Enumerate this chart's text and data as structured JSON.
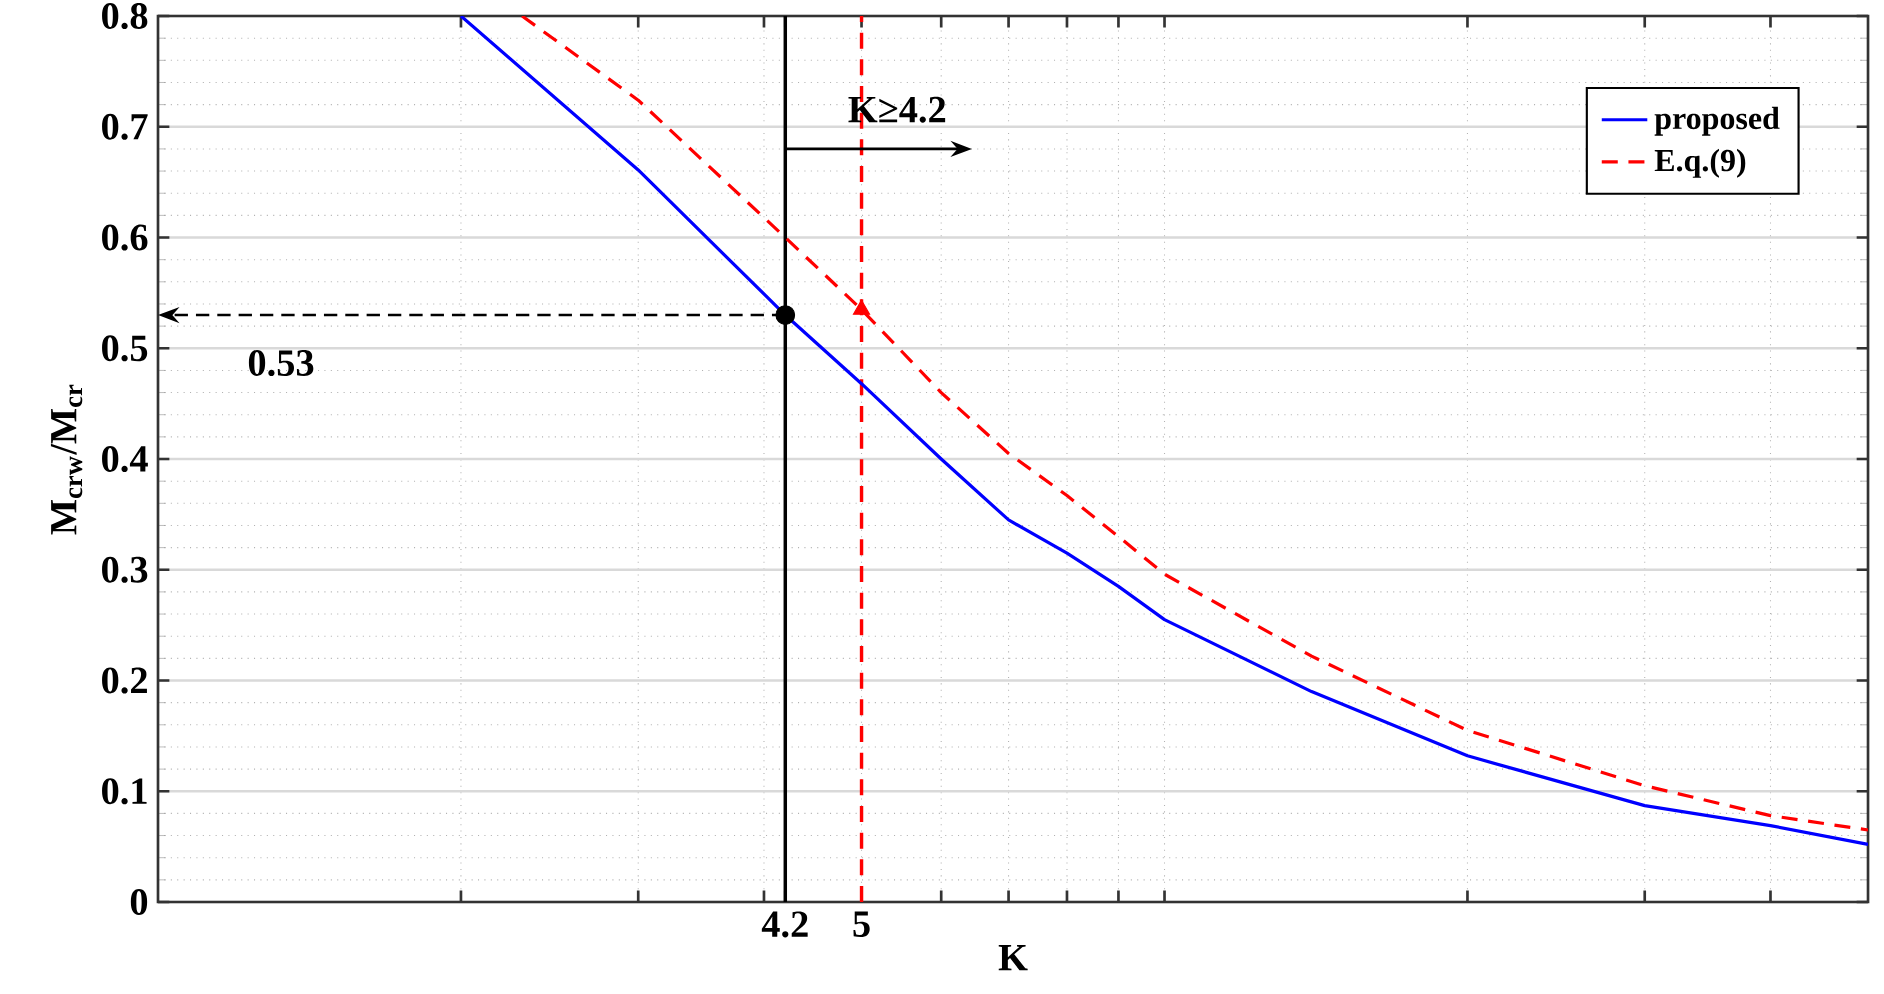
{
  "chart_data": {
    "type": "line",
    "xlabel": "K",
    "ylabel": "M$_{crw}$/M$_{cr}$",
    "log": "x",
    "xlim": [
      1,
      50
    ],
    "ylim": [
      0,
      0.8
    ],
    "xticks": [
      {
        "value": 2,
        "label": null
      },
      {
        "value": 3,
        "label": null
      },
      {
        "value": 4,
        "label": null
      },
      4.2,
      5,
      {
        "value": 6,
        "label": null
      },
      {
        "value": 7,
        "label": null
      },
      {
        "value": 8,
        "label": null
      },
      {
        "value": 9,
        "label": null
      },
      {
        "value": 10,
        "label": null
      },
      {
        "value": 20,
        "label": null
      },
      {
        "value": 30,
        "label": null
      },
      {
        "value": 40,
        "label": null
      }
    ],
    "yticks": [
      0,
      0.1,
      0.2,
      0.3,
      0.4,
      0.5,
      0.6,
      0.7,
      0.8
    ],
    "grid": true,
    "legend": "top right",
    "series": [
      {
        "name": "proposed",
        "color": "#0000ff",
        "line_style": "solid",
        "x": [
          2,
          3,
          4.2,
          5,
          6,
          7,
          8,
          9,
          10,
          14,
          20,
          30,
          40,
          50
        ],
        "values": [
          0.8,
          0.661,
          0.53,
          0.468,
          0.4,
          0.345,
          0.315,
          0.285,
          0.255,
          0.19,
          0.132,
          0.087,
          0.069,
          0.052
        ]
      },
      {
        "name": "E.q.(9)",
        "color": "#ff0000",
        "line_style": "dashed",
        "x": [
          2.3,
          3,
          4.2,
          5,
          6,
          7,
          8,
          9,
          10,
          14,
          20,
          30,
          40,
          50
        ],
        "values": [
          0.8,
          0.724,
          0.6,
          0.535,
          0.46,
          0.405,
          0.367,
          0.33,
          0.296,
          0.222,
          0.155,
          0.105,
          0.078,
          0.065
        ]
      },
      {
        "type": "scatter",
        "marker": "circle",
        "color": "#000000",
        "x": [
          4.2
        ],
        "values": [
          0.53
        ]
      },
      {
        "type": "scatter",
        "marker": "triangle",
        "color": "#ff0000",
        "x": [
          5
        ],
        "values": [
          0.535
        ]
      }
    ],
    "ref_lines": [
      {
        "axis": "x",
        "value": 4.2,
        "color": "#000000",
        "line_style": "solid"
      },
      {
        "axis": "x",
        "value": 5,
        "color": "#ff0000",
        "line_style": "dashed"
      }
    ],
    "annotations": [
      {
        "text": "K≥4.2",
        "x": 4.2,
        "y": 0.68
      },
      "0.53"
    ]
  }
}
